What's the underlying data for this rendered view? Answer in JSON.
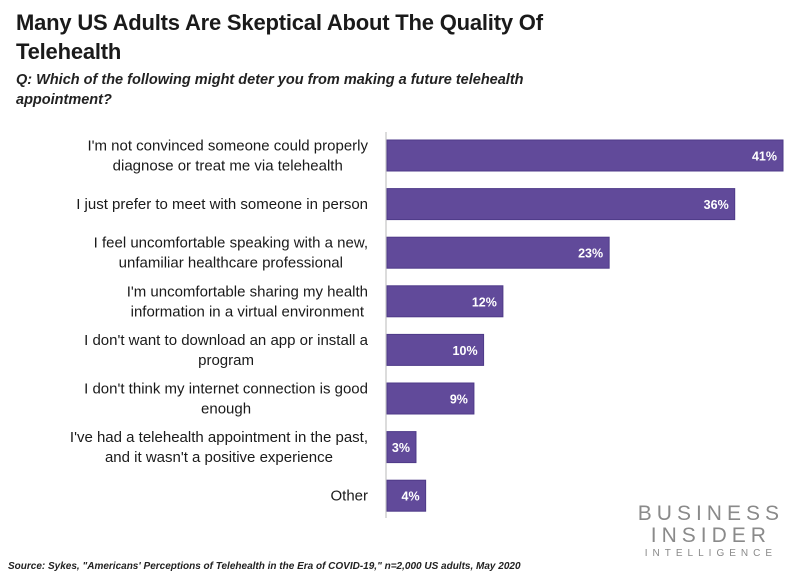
{
  "header": {
    "title": "Many US Adults Are Skeptical About The Quality Of Telehealth",
    "subtitle": "Q: Which of the following might deter you from making a future telehealth appointment?"
  },
  "footer": {
    "source": "Source: Sykes, \"Americans' Perceptions of Telehealth in the Era of COVID-19,\" n=2,000 US adults, May 2020",
    "logo": [
      "BUSINESS",
      "INSIDER",
      "INTELLIGENCE"
    ]
  },
  "colors": {
    "bar": "#614a9a",
    "bar_border": "#4e3a88",
    "axis": "#d0d0d0"
  },
  "chart_data": {
    "type": "bar",
    "orientation": "horizontal",
    "title": "Many US Adults Are Skeptical About The Quality Of Telehealth",
    "subtitle": "Q: Which of the following might deter you from making a future telehealth appointment?",
    "xlabel": "",
    "ylabel": "",
    "xlim": [
      0,
      41
    ],
    "grid": false,
    "legend": "none",
    "categories": [
      [
        "I'm not convinced someone could properly",
        "diagnose or treat me via telehealth"
      ],
      [
        "I just prefer to meet with someone in person"
      ],
      [
        "I feel uncomfortable speaking with a new,",
        "unfamiliar healthcare professional"
      ],
      [
        "I'm uncomfortable sharing my health",
        "information in a virtual environment"
      ],
      [
        "I don't want to download an app or install a",
        "program"
      ],
      [
        "I don't think my internet connection is good",
        "enough"
      ],
      [
        "I've had a telehealth appointment in the past,",
        "and it wasn't a positive experience"
      ],
      [
        "Other"
      ]
    ],
    "values": [
      41,
      36,
      23,
      12,
      10,
      9,
      3,
      4
    ],
    "value_labels": [
      "41%",
      "36%",
      "23%",
      "12%",
      "10%",
      "9%",
      "3%",
      "4%"
    ],
    "unit": "%"
  }
}
